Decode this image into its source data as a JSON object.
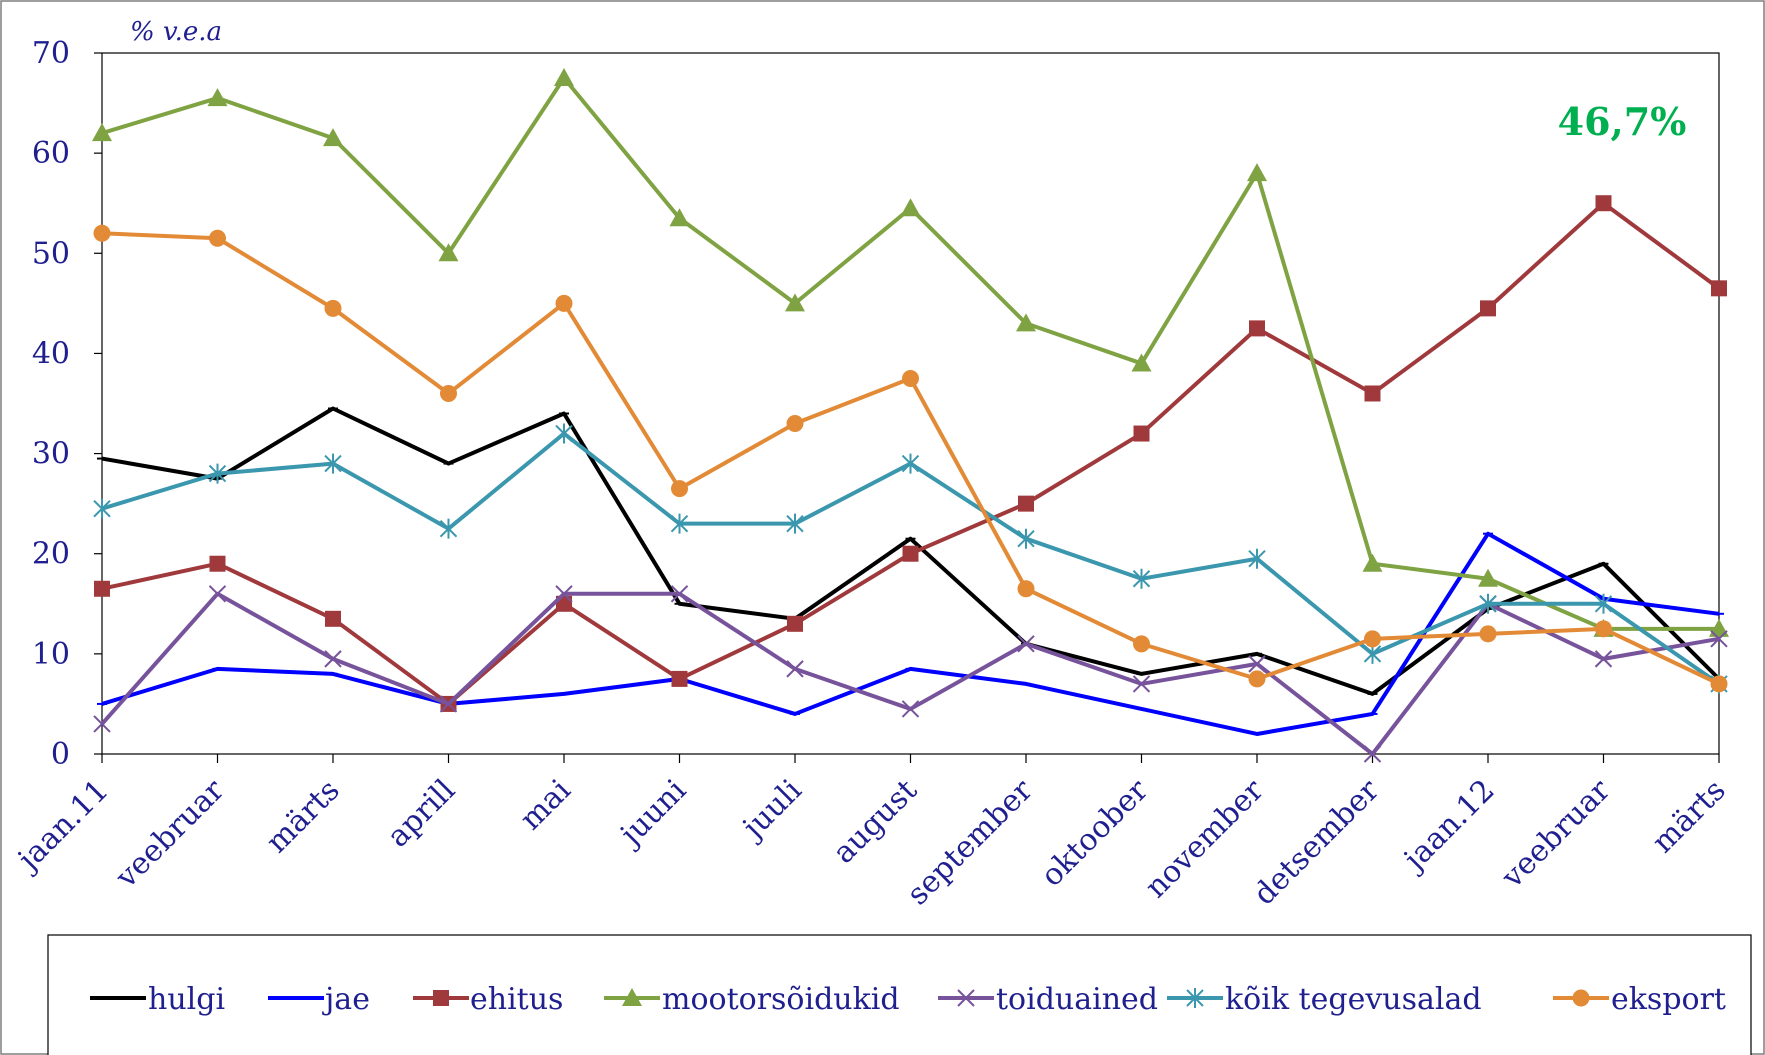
{
  "chart_data": {
    "type": "line",
    "unit_label": "% v.e.a",
    "annotation": "46,7%",
    "categories": [
      "jaan.11",
      "veebruar",
      "märts",
      "aprill",
      "mai",
      "juuni",
      "juuli",
      "august",
      "september",
      "oktoober",
      "november",
      "detsember",
      "jaan.12",
      "veebruar",
      "märts"
    ],
    "ylim": [
      0,
      70
    ],
    "yticks": [
      0,
      10,
      20,
      30,
      40,
      50,
      60,
      70
    ],
    "grid": false,
    "legend_position": "bottom",
    "series": [
      {
        "name": "hulgi",
        "color": "#000000",
        "marker": "small",
        "values": [
          29.5,
          27.5,
          34.5,
          29.0,
          34.0,
          15.0,
          13.5,
          21.5,
          11.0,
          8.0,
          10.0,
          6.0,
          14.5,
          19.0,
          7.5
        ]
      },
      {
        "name": "jae",
        "color": "#0000ff",
        "marker": "small",
        "values": [
          5.0,
          8.5,
          8.0,
          5.0,
          6.0,
          7.5,
          4.0,
          8.5,
          7.0,
          4.5,
          2.0,
          4.0,
          22.0,
          15.5,
          14.0
        ]
      },
      {
        "name": "ehitus",
        "color": "#a0393c",
        "marker": "square",
        "values": [
          16.5,
          19.0,
          13.5,
          5.0,
          15.0,
          7.5,
          13.0,
          20.0,
          25.0,
          32.0,
          42.5,
          36.0,
          44.5,
          55.0,
          46.5
        ]
      },
      {
        "name": "mootorsõidukid",
        "color": "#7fa343",
        "marker": "triangle",
        "values": [
          62.0,
          65.5,
          61.5,
          50.0,
          67.5,
          53.5,
          45.0,
          54.5,
          43.0,
          39.0,
          58.0,
          19.0,
          17.5,
          12.5,
          12.5
        ]
      },
      {
        "name": "toiduained",
        "color": "#77539b",
        "marker": "x",
        "values": [
          3.0,
          16.0,
          9.5,
          5.0,
          16.0,
          16.0,
          8.5,
          4.5,
          11.0,
          7.0,
          9.0,
          0.0,
          15.0,
          9.5,
          11.5
        ]
      },
      {
        "name": "kõik tegevusalad",
        "color": "#3a97ae",
        "marker": "star",
        "values": [
          24.5,
          28.0,
          29.0,
          22.5,
          32.0,
          23.0,
          23.0,
          29.0,
          21.5,
          17.5,
          19.5,
          10.0,
          15.0,
          15.0,
          7.0
        ]
      },
      {
        "name": "eksport",
        "color": "#e28a35",
        "marker": "circle",
        "values": [
          52.0,
          51.5,
          44.5,
          36.0,
          45.0,
          26.5,
          33.0,
          37.5,
          16.5,
          11.0,
          7.5,
          11.5,
          12.0,
          12.5,
          7.0
        ]
      }
    ]
  }
}
